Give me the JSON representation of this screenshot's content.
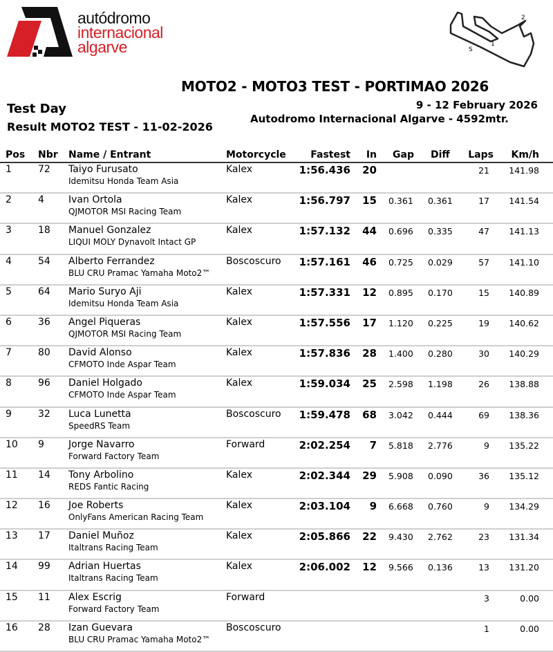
{
  "logo": {
    "line1": "autódromo",
    "line2": "internacional",
    "line3": "algarve",
    "colors": {
      "red": "#d61f26",
      "black": "#111111"
    }
  },
  "track_map": {
    "labels": [
      "S",
      "1",
      "2"
    ]
  },
  "header": {
    "title": "MOTO2 - MOTO3 TEST - PORTIMAO 2026",
    "dates": "9 - 12 February 2026",
    "venue": "Autodromo Internacional Algarve - 4592mtr.",
    "session": "Test Day",
    "result": "Result MOTO2 TEST - 11-02-2026"
  },
  "table": {
    "columns": {
      "pos": "Pos",
      "nbr": "Nbr",
      "name": "Name / Entrant",
      "moto": "Motorcycle",
      "fast": "Fastest",
      "in": "In",
      "gap": "Gap",
      "diff": "Diff",
      "laps": "Laps",
      "kmh": "Km/h"
    },
    "rows": [
      {
        "pos": "1",
        "nbr": "72",
        "name": "Taiyo Furusato",
        "team": "Idemitsu Honda Team Asia",
        "moto": "Kalex",
        "fast": "1:56.436",
        "in": "20",
        "gap": "",
        "diff": "",
        "laps": "21",
        "kmh": "141.98"
      },
      {
        "pos": "2",
        "nbr": "4",
        "name": "Ivan Ortola",
        "team": "QJMOTOR MSI Racing Team",
        "moto": "Kalex",
        "fast": "1:56.797",
        "in": "15",
        "gap": "0.361",
        "diff": "0.361",
        "laps": "17",
        "kmh": "141.54"
      },
      {
        "pos": "3",
        "nbr": "18",
        "name": "Manuel Gonzalez",
        "team": "LIQUI MOLY Dynavolt Intact GP",
        "moto": "Kalex",
        "fast": "1:57.132",
        "in": "44",
        "gap": "0.696",
        "diff": "0.335",
        "laps": "47",
        "kmh": "141.13"
      },
      {
        "pos": "4",
        "nbr": "54",
        "name": "Alberto Ferrandez",
        "team": "BLU CRU Pramac Yamaha Moto2™",
        "moto": "Boscoscuro",
        "fast": "1:57.161",
        "in": "46",
        "gap": "0.725",
        "diff": "0.029",
        "laps": "57",
        "kmh": "141.10"
      },
      {
        "pos": "5",
        "nbr": "64",
        "name": "Mario Suryo Aji",
        "team": "Idemitsu Honda Team Asia",
        "moto": "Kalex",
        "fast": "1:57.331",
        "in": "12",
        "gap": "0.895",
        "diff": "0.170",
        "laps": "15",
        "kmh": "140.89"
      },
      {
        "pos": "6",
        "nbr": "36",
        "name": "Angel Piqueras",
        "team": "QJMOTOR MSI Racing Team",
        "moto": "Kalex",
        "fast": "1:57.556",
        "in": "17",
        "gap": "1.120",
        "diff": "0.225",
        "laps": "19",
        "kmh": "140.62"
      },
      {
        "pos": "7",
        "nbr": "80",
        "name": "David Alonso",
        "team": "CFMOTO Inde Aspar Team",
        "moto": "Kalex",
        "fast": "1:57.836",
        "in": "28",
        "gap": "1.400",
        "diff": "0.280",
        "laps": "30",
        "kmh": "140.29"
      },
      {
        "pos": "8",
        "nbr": "96",
        "name": "Daniel Holgado",
        "team": "CFMOTO Inde Aspar Team",
        "moto": "Kalex",
        "fast": "1:59.034",
        "in": "25",
        "gap": "2.598",
        "diff": "1.198",
        "laps": "26",
        "kmh": "138.88"
      },
      {
        "pos": "9",
        "nbr": "32",
        "name": "Luca Lunetta",
        "team": "SpeedRS Team",
        "moto": "Boscoscuro",
        "fast": "1:59.478",
        "in": "68",
        "gap": "3.042",
        "diff": "0.444",
        "laps": "69",
        "kmh": "138.36"
      },
      {
        "pos": "10",
        "nbr": "9",
        "name": "Jorge Navarro",
        "team": "Forward Factory Team",
        "moto": "Forward",
        "fast": "2:02.254",
        "in": "7",
        "gap": "5.818",
        "diff": "2.776",
        "laps": "9",
        "kmh": "135.22"
      },
      {
        "pos": "11",
        "nbr": "14",
        "name": "Tony Arbolino",
        "team": "REDS Fantic Racing",
        "moto": "Kalex",
        "fast": "2:02.344",
        "in": "29",
        "gap": "5.908",
        "diff": "0.090",
        "laps": "36",
        "kmh": "135.12"
      },
      {
        "pos": "12",
        "nbr": "16",
        "name": "Joe Roberts",
        "team": "OnlyFans American Racing Team",
        "moto": "Kalex",
        "fast": "2:03.104",
        "in": "9",
        "gap": "6.668",
        "diff": "0.760",
        "laps": "9",
        "kmh": "134.29"
      },
      {
        "pos": "13",
        "nbr": "17",
        "name": "Daniel Muñoz",
        "team": "Italtrans Racing Team",
        "moto": "Kalex",
        "fast": "2:05.866",
        "in": "22",
        "gap": "9.430",
        "diff": "2.762",
        "laps": "23",
        "kmh": "131.34"
      },
      {
        "pos": "14",
        "nbr": "99",
        "name": "Adrian Huertas",
        "team": "Italtrans Racing Team",
        "moto": "Kalex",
        "fast": "2:06.002",
        "in": "12",
        "gap": "9.566",
        "diff": "0.136",
        "laps": "13",
        "kmh": "131.20"
      },
      {
        "pos": "15",
        "nbr": "11",
        "name": "Alex Escrig",
        "team": "Forward Factory Team",
        "moto": "Forward",
        "fast": "",
        "in": "",
        "gap": "",
        "diff": "",
        "laps": "3",
        "kmh": "0.00"
      },
      {
        "pos": "16",
        "nbr": "28",
        "name": "Izan Guevara",
        "team": "BLU CRU Pramac Yamaha Moto2™",
        "moto": "Boscoscuro",
        "fast": "",
        "in": "",
        "gap": "",
        "diff": "",
        "laps": "1",
        "kmh": "0.00"
      }
    ]
  }
}
